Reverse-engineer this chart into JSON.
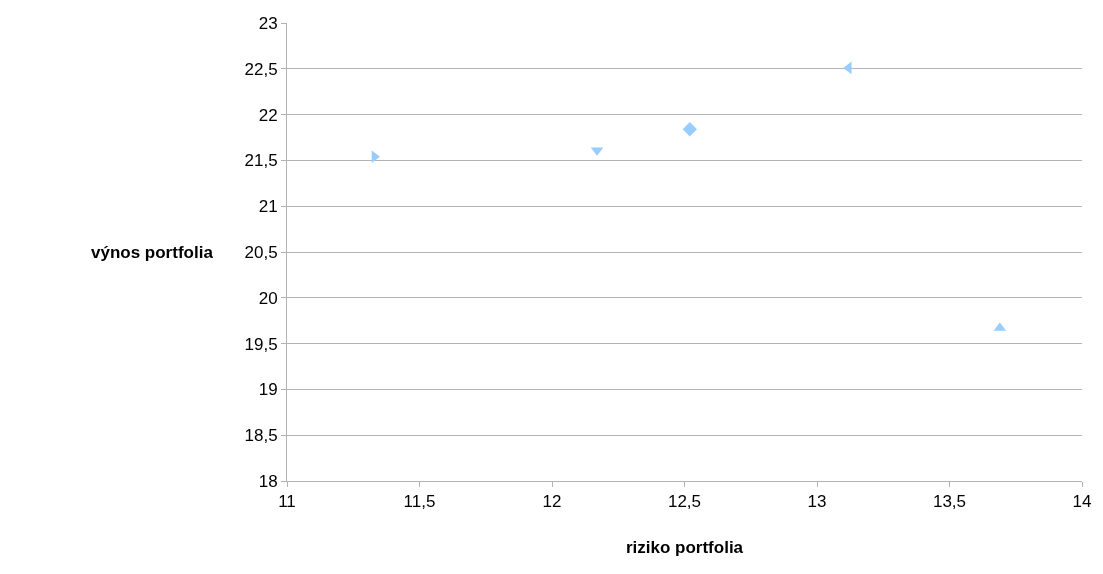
{
  "chart_data": {
    "type": "scatter",
    "xlabel": "riziko portfolia",
    "ylabel": "výnos portfolia",
    "series": [
      {
        "x": [
          11.33
        ],
        "values": [
          21.54
        ],
        "color": "#99ccff",
        "marker": "triangle-right"
      },
      {
        "x": [
          12.17
        ],
        "values": [
          21.61
        ],
        "color": "#99ccff",
        "marker": "triangle-down"
      },
      {
        "x": [
          12.52
        ],
        "values": [
          21.84
        ],
        "color": "#99ccff",
        "marker": "diamond"
      },
      {
        "x": [
          13.12
        ],
        "values": [
          22.51
        ],
        "color": "#99ccff",
        "marker": "triangle-left"
      },
      {
        "x": [
          13.69
        ],
        "values": [
          19.67
        ],
        "color": "#99ccff",
        "marker": "triangle-up"
      }
    ],
    "xlim": [
      11,
      14
    ],
    "xticks": [
      11,
      {
        "value": 11.5,
        "label": "11,5"
      },
      12,
      {
        "value": 12.5,
        "label": "12,5"
      },
      13,
      {
        "value": 13.5,
        "label": "13,5"
      },
      14
    ],
    "ylim": [
      18,
      23
    ],
    "yticks": [
      18,
      {
        "value": 18.5,
        "label": "18,5"
      },
      19,
      {
        "value": 19.5,
        "label": "19,5"
      },
      20,
      {
        "value": 20.5,
        "label": "20,5"
      },
      21,
      {
        "value": 21.5,
        "label": "21,5"
      },
      22,
      {
        "value": 22.5,
        "label": "22,5"
      },
      23
    ],
    "grid": "y"
  }
}
